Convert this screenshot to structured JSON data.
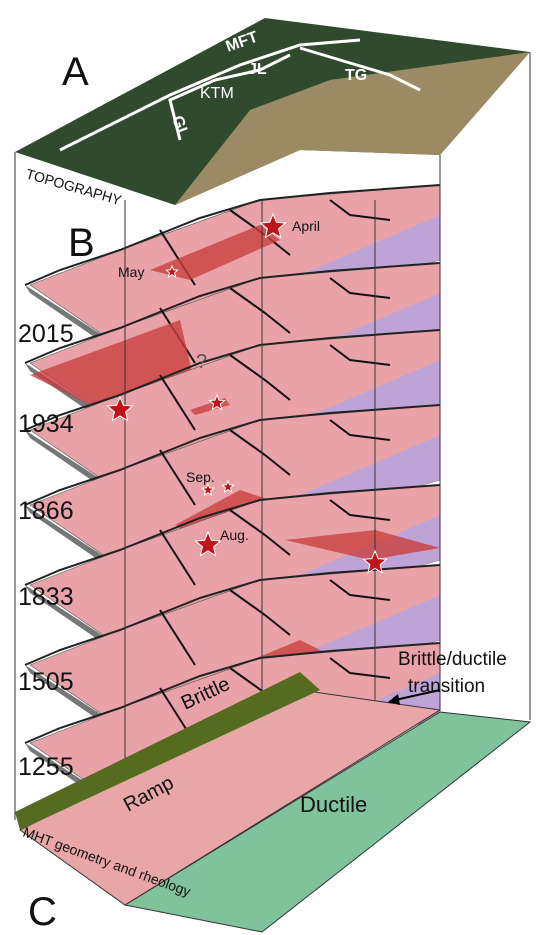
{
  "panels": {
    "a": "A",
    "b": "B",
    "c": "C"
  },
  "topography": {
    "label": "TOPOGRAPHY",
    "faults": [
      "MFT",
      "GL",
      "KTM",
      "JL",
      "TG"
    ]
  },
  "events": [
    {
      "year": "2015",
      "labels": [
        "April",
        "May"
      ]
    },
    {
      "year": "1934",
      "labels": [
        "?"
      ]
    },
    {
      "year": "1866",
      "labels": [
        "Sep."
      ]
    },
    {
      "year": "1833",
      "labels": [
        "Aug."
      ]
    },
    {
      "year": "1505",
      "labels": []
    },
    {
      "year": "1255",
      "labels": []
    }
  ],
  "rheology": {
    "title": "MHT geometry and rheology",
    "transition": [
      "Brittle/ductile",
      "transition"
    ],
    "brittle": "Brittle",
    "ramp": "Ramp",
    "ductile": "Ductile"
  }
}
